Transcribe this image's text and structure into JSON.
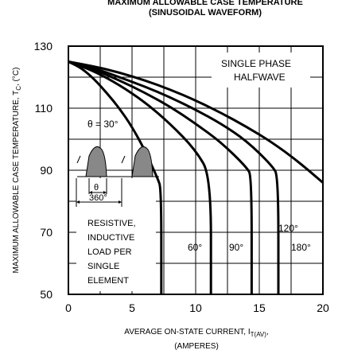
{
  "chart_data": {
    "type": "line",
    "title": "MAXIMUM ALLOWABLE CASE TEMPERATURE",
    "subtitle": "(SINUSOIDAL WAVEFORM)",
    "xlabel": "AVERAGE ON-STATE  CURRENT, I",
    "xlabel_subscript": "T(AV)",
    "xlabel_suffix": ",",
    "xlabel_line2": "(AMPERES)",
    "ylabel": "MAXIMUM ALLOWABLE CASE TEMPERATURE, T",
    "ylabel_subscript": "C",
    "ylabel_suffix": ", (°C)",
    "xlim": [
      0,
      20
    ],
    "ylim": [
      50,
      130
    ],
    "x_ticks": [
      "0",
      "5",
      "10",
      "15",
      "20"
    ],
    "y_ticks": [
      "50",
      "70",
      "90",
      "110",
      "130"
    ],
    "series": [
      {
        "name": "θ = 30°",
        "x": [
          0,
          1,
          2,
          3,
          4,
          5,
          6,
          7,
          7.3,
          7.3
        ],
        "y": [
          125,
          123,
          119.5,
          115,
          110,
          104,
          96.5,
          87.5,
          84,
          50
        ]
      },
      {
        "name": "60°",
        "x": [
          0,
          2,
          4,
          6,
          8,
          10,
          11.2,
          11.2
        ],
        "y": [
          125,
          122,
          117.5,
          112,
          105,
          96.5,
          88,
          50
        ]
      },
      {
        "name": "90°",
        "x": [
          0,
          2,
          4,
          6,
          8,
          10,
          12,
          14,
          14.4,
          14.4
        ],
        "y": [
          125,
          122.5,
          119,
          115,
          110.5,
          105,
          99,
          91,
          88,
          50
        ]
      },
      {
        "name": "120°",
        "x": [
          0,
          2,
          4,
          6,
          8,
          10,
          12,
          14,
          16,
          16.5,
          16.5
        ],
        "y": [
          125,
          123,
          120,
          117,
          113.5,
          109.5,
          105,
          99.5,
          91.5,
          88,
          50
        ]
      },
      {
        "name": "180°",
        "x": [
          0,
          2,
          4,
          6,
          8,
          10,
          12,
          14,
          16,
          18,
          20
        ],
        "y": [
          125,
          123.5,
          121.5,
          119,
          116,
          112.5,
          108.5,
          104,
          99,
          93,
          86
        ]
      }
    ],
    "annotations": {
      "single_phase": [
        "SINGLE PHASE",
        "HALFWAVE"
      ],
      "theta_label": "θ = 30°",
      "load_note": [
        "RESISTIVE,",
        "INDUCTIVE",
        "LOAD PER",
        "SINGLE",
        "ELEMENT"
      ],
      "inset_theta": "θ",
      "inset_360": "360°",
      "label_60": "60°",
      "label_90": "90°",
      "label_120": "120°",
      "label_180": "180°"
    },
    "grid": true
  }
}
